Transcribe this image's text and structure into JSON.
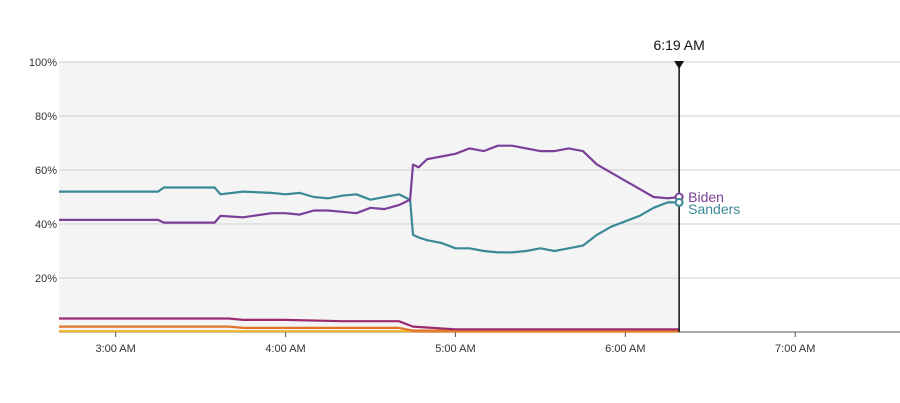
{
  "chart_data": {
    "type": "line",
    "x_unit": "time",
    "xlim": [
      "2:40 AM",
      "7:37 AM"
    ],
    "ylim": [
      0,
      100
    ],
    "y_ticks": [
      "20%",
      "40%",
      "60%",
      "80%",
      "100%"
    ],
    "x_ticks": [
      "3:00 AM",
      "4:00 AM",
      "5:00 AM",
      "6:00 AM",
      "7:00 AM"
    ],
    "grid": true,
    "current_time_label": "6:19 AM",
    "series": [
      {
        "name": "Biden",
        "color": "#7B3F98",
        "labeled": true,
        "points": [
          [
            "2:40 AM",
            41.5
          ],
          [
            "3:00 AM",
            41.5
          ],
          [
            "3:15 AM",
            41.5
          ],
          [
            "3:17 AM",
            40.5
          ],
          [
            "3:30 AM",
            40.5
          ],
          [
            "3:35 AM",
            40.5
          ],
          [
            "3:37 AM",
            43
          ],
          [
            "3:45 AM",
            42.5
          ],
          [
            "3:55 AM",
            44
          ],
          [
            "4:00 AM",
            44
          ],
          [
            "4:05 AM",
            43.5
          ],
          [
            "4:10 AM",
            45
          ],
          [
            "4:15 AM",
            45
          ],
          [
            "4:20 AM",
            44.5
          ],
          [
            "4:25 AM",
            44
          ],
          [
            "4:30 AM",
            46
          ],
          [
            "4:35 AM",
            45.5
          ],
          [
            "4:40 AM",
            47
          ],
          [
            "4:44 AM",
            49
          ],
          [
            "4:45 AM",
            62
          ],
          [
            "4:47 AM",
            61
          ],
          [
            "4:50 AM",
            64
          ],
          [
            "4:55 AM",
            65
          ],
          [
            "5:00 AM",
            66
          ],
          [
            "5:05 AM",
            68
          ],
          [
            "5:10 AM",
            67
          ],
          [
            "5:15 AM",
            69
          ],
          [
            "5:20 AM",
            69
          ],
          [
            "5:25 AM",
            68
          ],
          [
            "5:30 AM",
            67
          ],
          [
            "5:35 AM",
            67
          ],
          [
            "5:40 AM",
            68
          ],
          [
            "5:45 AM",
            67
          ],
          [
            "5:50 AM",
            62
          ],
          [
            "5:55 AM",
            59
          ],
          [
            "6:00 AM",
            56
          ],
          [
            "6:05 AM",
            53
          ],
          [
            "6:10 AM",
            50
          ],
          [
            "6:15 AM",
            49.5
          ],
          [
            "6:19 AM",
            50
          ]
        ]
      },
      {
        "name": "Sanders",
        "color": "#3A8A96",
        "labeled": true,
        "points": [
          [
            "2:40 AM",
            52
          ],
          [
            "3:00 AM",
            52
          ],
          [
            "3:15 AM",
            52
          ],
          [
            "3:17 AM",
            53.5
          ],
          [
            "3:30 AM",
            53.5
          ],
          [
            "3:35 AM",
            53.5
          ],
          [
            "3:37 AM",
            51
          ],
          [
            "3:45 AM",
            52
          ],
          [
            "3:55 AM",
            51.5
          ],
          [
            "4:00 AM",
            51
          ],
          [
            "4:05 AM",
            51.5
          ],
          [
            "4:10 AM",
            50
          ],
          [
            "4:15 AM",
            49.5
          ],
          [
            "4:20 AM",
            50.5
          ],
          [
            "4:25 AM",
            51
          ],
          [
            "4:30 AM",
            49
          ],
          [
            "4:35 AM",
            50
          ],
          [
            "4:40 AM",
            51
          ],
          [
            "4:44 AM",
            49
          ],
          [
            "4:45 AM",
            36
          ],
          [
            "4:47 AM",
            35
          ],
          [
            "4:50 AM",
            34
          ],
          [
            "4:55 AM",
            33
          ],
          [
            "5:00 AM",
            31
          ],
          [
            "5:05 AM",
            31
          ],
          [
            "5:10 AM",
            30
          ],
          [
            "5:15 AM",
            29.5
          ],
          [
            "5:20 AM",
            29.5
          ],
          [
            "5:25 AM",
            30
          ],
          [
            "5:30 AM",
            31
          ],
          [
            "5:35 AM",
            30
          ],
          [
            "5:40 AM",
            31
          ],
          [
            "5:45 AM",
            32
          ],
          [
            "5:50 AM",
            36
          ],
          [
            "5:55 AM",
            39
          ],
          [
            "6:00 AM",
            41
          ],
          [
            "6:05 AM",
            43
          ],
          [
            "6:10 AM",
            46
          ],
          [
            "6:15 AM",
            48
          ],
          [
            "6:19 AM",
            48
          ]
        ]
      },
      {
        "color": "#9B2B6E",
        "labeled": false,
        "points": [
          [
            "2:40 AM",
            5
          ],
          [
            "3:40 AM",
            5
          ],
          [
            "3:45 AM",
            4.5
          ],
          [
            "4:00 AM",
            4.5
          ],
          [
            "4:20 AM",
            4
          ],
          [
            "4:40 AM",
            4
          ],
          [
            "4:45 AM",
            2
          ],
          [
            "5:00 AM",
            1
          ],
          [
            "5:30 AM",
            1
          ],
          [
            "6:00 AM",
            1
          ],
          [
            "6:19 AM",
            1
          ]
        ]
      },
      {
        "color": "#E0742A",
        "labeled": false,
        "points": [
          [
            "2:40 AM",
            2
          ],
          [
            "3:40 AM",
            2
          ],
          [
            "3:45 AM",
            1.5
          ],
          [
            "4:40 AM",
            1.5
          ],
          [
            "4:45 AM",
            0.5
          ],
          [
            "5:30 AM",
            0.5
          ],
          [
            "6:19 AM",
            0.5
          ]
        ]
      },
      {
        "color": "#F2B526",
        "labeled": false,
        "points": [
          [
            "2:40 AM",
            0.3
          ],
          [
            "6:19 AM",
            0.3
          ]
        ]
      },
      {
        "color": "#D0312D",
        "labeled": false,
        "points": [
          [
            "4:45 AM",
            0.2
          ],
          [
            "6:19 AM",
            0.2
          ]
        ]
      }
    ]
  }
}
